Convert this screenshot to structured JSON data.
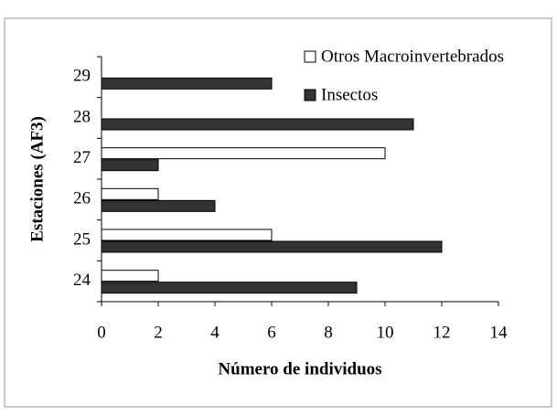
{
  "chart_data": {
    "type": "bar",
    "orientation": "horizontal",
    "x_label": "Número de individuos",
    "y_label": "Estaciones (AF3)",
    "categories": [
      "24",
      "25",
      "26",
      "27",
      "28",
      "29"
    ],
    "series": [
      {
        "name": "Otros Macroinvertebrados",
        "color": "#ffffff",
        "values": [
          2,
          6,
          2,
          10,
          0,
          0
        ]
      },
      {
        "name": "Insectos",
        "color": "#333333",
        "values": [
          9,
          12,
          4,
          2,
          11,
          6
        ]
      }
    ],
    "xlim": [
      0,
      14
    ],
    "xticks": [
      0,
      2,
      4,
      6,
      8,
      10,
      12,
      14
    ],
    "legend": "top-right",
    "grid": false
  }
}
